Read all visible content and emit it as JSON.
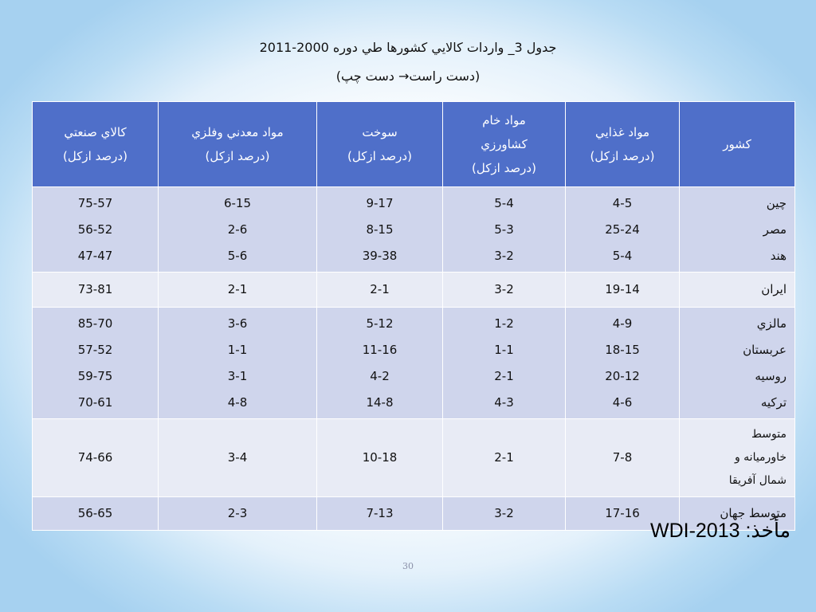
{
  "title": "جدول 3_ واردات كالايي كشورها طي دوره 2000-2011",
  "subtitle": "(دست راست→  دست چپ)",
  "table": {
    "headers": [
      "كشور",
      "مواد غذايي (درصد ازكل)",
      "مواد خام كشاورزي (درصد ازكل)",
      "سوخت (درصد ازكل)",
      "مواد معدني وفلزي (درصد ازكل)",
      "كالاي صنعتي (درصد ازكل)"
    ],
    "header_lines": [
      [
        "كشور"
      ],
      [
        "مواد غذايي",
        "(درصد ازكل)"
      ],
      [
        "مواد خام",
        "كشاورزي",
        "(درصد ازكل)"
      ],
      [
        "سوخت",
        "(درصد ازكل)"
      ],
      [
        "مواد معدني وفلزي",
        "(درصد ازكل)"
      ],
      [
        "كالاي صنعتي",
        "(درصد ازكل)"
      ]
    ],
    "groups": [
      {
        "shade": "shaded",
        "rows": [
          [
            "چين",
            "4-5",
            "5-4",
            "9-17",
            "6-15",
            "75-57"
          ],
          [
            "مصر",
            "25-24",
            "5-3",
            "8-15",
            "2-6",
            "56-52"
          ],
          [
            "هند",
            "5-4",
            "3-2",
            "39-38",
            "5-6",
            "47-47"
          ]
        ]
      },
      {
        "shade": "light",
        "rows": [
          [
            "ايران",
            "19-14",
            "3-2",
            "2-1",
            "2-1",
            "73-81"
          ]
        ]
      },
      {
        "shade": "shaded",
        "rows": [
          [
            "مالزي",
            "4-9",
            "1-2",
            "5-12",
            "3-6",
            "85-70"
          ],
          [
            "عربستان",
            "18-15",
            "1-1",
            "11-16",
            "1-1",
            "57-52"
          ],
          [
            "روسيه",
            "20-12",
            "2-1",
            "4-2",
            "3-1",
            "59-75"
          ],
          [
            "تركيه",
            "4-6",
            "4-3",
            "14-8",
            "4-8",
            "70-61"
          ]
        ]
      },
      {
        "shade": "light",
        "country_lines": [
          "متوسط",
          "خاورميانه و",
          "شمال آفريقا"
        ],
        "rows": [
          [
            "متوسط خاورميانه و شمال آفريقا",
            "7-8",
            "2-1",
            "10-18",
            "3-4",
            "74-66"
          ]
        ]
      },
      {
        "shade": "shaded",
        "rows": [
          [
            "متوسط جهان",
            "17-16",
            "3-2",
            "7-13",
            "2-3",
            "56-65"
          ]
        ]
      }
    ]
  },
  "source": "مأخذ: WDI-2013",
  "page_number": "30"
}
